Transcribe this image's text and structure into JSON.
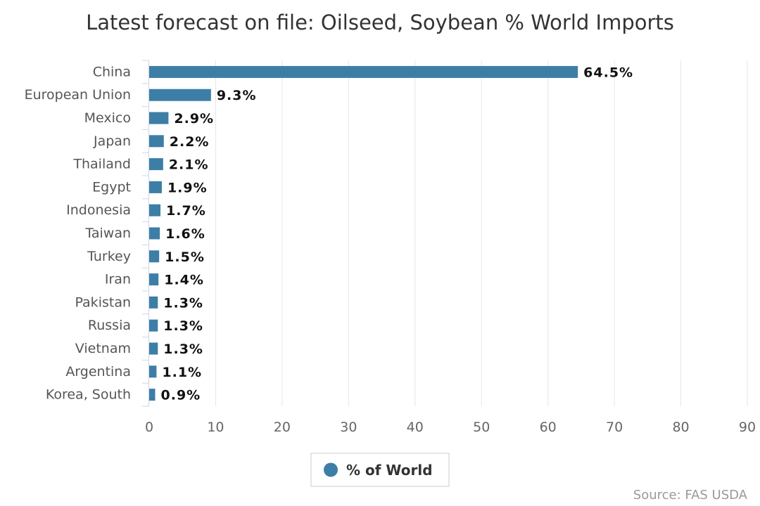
{
  "chart_data": {
    "type": "bar",
    "orientation": "horizontal",
    "title": "Latest forecast on file: Oilseed, Soybean % World Imports",
    "categories": [
      "China",
      "European Union",
      "Mexico",
      "Japan",
      "Thailand",
      "Egypt",
      "Indonesia",
      "Taiwan",
      "Turkey",
      "Iran",
      "Pakistan",
      "Russia",
      "Vietnam",
      "Argentina",
      "Korea, South"
    ],
    "series": [
      {
        "name": "% of World",
        "values": [
          64.5,
          9.3,
          2.9,
          2.2,
          2.1,
          1.9,
          1.7,
          1.6,
          1.5,
          1.4,
          1.3,
          1.3,
          1.3,
          1.1,
          0.9
        ],
        "labels": [
          "64.5%",
          "9.3%",
          "2.9%",
          "2.2%",
          "2.1%",
          "1.9%",
          "1.7%",
          "1.6%",
          "1.5%",
          "1.4%",
          "1.3%",
          "1.3%",
          "1.3%",
          "1.1%",
          "0.9%"
        ]
      }
    ],
    "xlim": [
      0,
      90
    ],
    "xticks": [
      0,
      10,
      20,
      30,
      40,
      50,
      60,
      70,
      80,
      90
    ],
    "xticklabels": [
      "0",
      "10",
      "20",
      "30",
      "40",
      "50",
      "60",
      "70",
      "80",
      "90"
    ],
    "grid": true,
    "legend_position": "bottom-center",
    "source": "Source: FAS USDA",
    "colors": {
      "bar": "#3d7ea6",
      "grid": "#e6e6e6",
      "axis": "#ccd6eb"
    }
  }
}
